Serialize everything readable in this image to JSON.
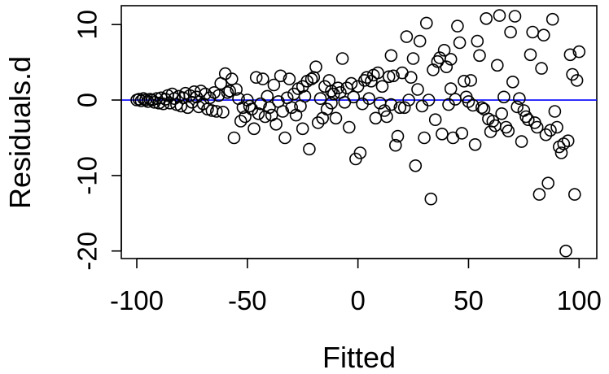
{
  "chart_data": {
    "type": "scatter",
    "title": "",
    "xlabel": "Fitted",
    "ylabel": "Residuals.d",
    "xlim": [
      -107,
      108
    ],
    "ylim": [
      -21,
      12.5
    ],
    "xticks": [
      -100,
      -50,
      0,
      50,
      100
    ],
    "yticks": [
      -20,
      -10,
      0,
      10
    ],
    "reference_line": {
      "y": 0,
      "color": "#0000ff"
    },
    "grid": false,
    "legend": "none",
    "point_color": "#000000",
    "points": [
      [
        -100,
        0.0
      ],
      [
        -99,
        0.1
      ],
      [
        -98,
        -0.1
      ],
      [
        -97,
        0.2
      ],
      [
        -96,
        0.0
      ],
      [
        -95,
        -0.2
      ],
      [
        -94,
        0.1
      ],
      [
        -93,
        0.0
      ],
      [
        -92,
        -0.3
      ],
      [
        -91,
        0.2
      ],
      [
        -90,
        -0.4
      ],
      [
        -89,
        0.3
      ],
      [
        -88,
        -0.5
      ],
      [
        -87,
        0.1
      ],
      [
        -86,
        0.6
      ],
      [
        -85,
        -0.4
      ],
      [
        -84,
        0.8
      ],
      [
        -83,
        0.2
      ],
      [
        -82,
        -0.6
      ],
      [
        -81,
        0.5
      ],
      [
        -80,
        -0.8
      ],
      [
        -79,
        0.3
      ],
      [
        -78,
        0.9
      ],
      [
        -77,
        -1.0
      ],
      [
        -76,
        0.6
      ],
      [
        -75,
        -0.3
      ],
      [
        -74,
        1.1
      ],
      [
        -73,
        0.4
      ],
      [
        -72,
        -0.9
      ],
      [
        -71,
        1.2
      ],
      [
        -70,
        -0.5
      ],
      [
        -69,
        0.8
      ],
      [
        -68,
        -1.2
      ],
      [
        -67,
        0.3
      ],
      [
        -66,
        -1.4
      ],
      [
        -65,
        1.0
      ],
      [
        -64,
        -1.5
      ],
      [
        -63,
        0.6
      ],
      [
        -62,
        2.2
      ],
      [
        -61,
        -1.6
      ],
      [
        -60,
        3.5
      ],
      [
        -59,
        1.0
      ],
      [
        -58,
        1.2
      ],
      [
        -57,
        2.8
      ],
      [
        -56,
        -5.0
      ],
      [
        -55,
        1.4
      ],
      [
        -54,
        0.2
      ],
      [
        -53,
        -2.8
      ],
      [
        -52,
        -1.0
      ],
      [
        -51,
        -2.2
      ],
      [
        -50,
        0.0
      ],
      [
        -49,
        -0.8
      ],
      [
        -48,
        -1.2
      ],
      [
        -47,
        -3.8
      ],
      [
        -46,
        3.0
      ],
      [
        -45,
        -1.8
      ],
      [
        -44,
        -0.5
      ],
      [
        -43,
        2.8
      ],
      [
        -42,
        -2.2
      ],
      [
        -41,
        0.5
      ],
      [
        -40,
        -1.0
      ],
      [
        -39,
        -2.0
      ],
      [
        -38,
        2.0
      ],
      [
        -37,
        -3.2
      ],
      [
        -36,
        -0.2
      ],
      [
        -35,
        3.2
      ],
      [
        -34,
        -1.5
      ],
      [
        -33,
        -5.0
      ],
      [
        -32,
        0.3
      ],
      [
        -31,
        2.8
      ],
      [
        -30,
        -1.0
      ],
      [
        -29,
        0.8
      ],
      [
        -28,
        -2.0
      ],
      [
        -27,
        1.5
      ],
      [
        -26,
        -0.8
      ],
      [
        -25,
        -3.8
      ],
      [
        -24,
        0.5
      ],
      [
        -23,
        2.5
      ],
      [
        -22,
        -6.5
      ],
      [
        -21,
        2.8
      ],
      [
        -20,
        3.0
      ],
      [
        -19,
        4.4
      ],
      [
        -18,
        -3.0
      ],
      [
        -17,
        0.2
      ],
      [
        -16,
        -2.4
      ],
      [
        -15,
        1.8
      ],
      [
        -14,
        -1.2
      ],
      [
        -13,
        2.6
      ],
      [
        -12,
        -0.4
      ],
      [
        -11,
        0.8
      ],
      [
        -10,
        -2.4
      ],
      [
        -9,
        1.6
      ],
      [
        -8,
        1.0
      ],
      [
        -7,
        5.5
      ],
      [
        -6,
        -0.3
      ],
      [
        -5,
        1.6
      ],
      [
        -4,
        -3.6
      ],
      [
        -3,
        2.2
      ],
      [
        -2,
        0.4
      ],
      [
        -1,
        -7.8
      ],
      [
        0,
        1.8
      ],
      [
        1,
        -7.0
      ],
      [
        2,
        -0.5
      ],
      [
        3,
        2.6
      ],
      [
        4,
        3.0
      ],
      [
        5,
        0.2
      ],
      [
        6,
        2.5
      ],
      [
        7,
        3.3
      ],
      [
        8,
        -2.4
      ],
      [
        9,
        3.6
      ],
      [
        10,
        -0.4
      ],
      [
        11,
        1.8
      ],
      [
        12,
        -1.4
      ],
      [
        13,
        -2.2
      ],
      [
        14,
        3.1
      ],
      [
        15,
        -0.6
      ],
      [
        16,
        3.2
      ],
      [
        17,
        -6.0
      ],
      [
        18,
        -4.8
      ],
      [
        19,
        -1.0
      ],
      [
        20,
        3.6
      ],
      [
        21,
        -1.0
      ],
      [
        22,
        8.4
      ],
      [
        23,
        0.0
      ],
      [
        24,
        3.0
      ],
      [
        25,
        5.5
      ],
      [
        26,
        -8.7
      ],
      [
        27,
        1.4
      ],
      [
        28,
        7.8
      ],
      [
        29,
        -0.8
      ],
      [
        30,
        -5.0
      ],
      [
        31,
        10.2
      ],
      [
        32,
        0.0
      ],
      [
        33,
        -13.1
      ],
      [
        34,
        4.0
      ],
      [
        35,
        -2.6
      ],
      [
        36,
        5.1
      ],
      [
        37,
        5.6
      ],
      [
        38,
        -4.5
      ],
      [
        39,
        6.6
      ],
      [
        40,
        4.4
      ],
      [
        41,
        -0.6
      ],
      [
        42,
        5.4
      ],
      [
        43,
        -5.0
      ],
      [
        44,
        0.1
      ],
      [
        45,
        9.8
      ],
      [
        46,
        7.6
      ],
      [
        47,
        -4.4
      ],
      [
        48,
        2.5
      ],
      [
        49,
        0.4
      ],
      [
        50,
        -0.2
      ],
      [
        51,
        2.6
      ],
      [
        52,
        -0.7
      ],
      [
        53,
        -5.9
      ],
      [
        54,
        7.8
      ],
      [
        55,
        5.9
      ],
      [
        56,
        -1.0
      ],
      [
        57,
        -1.2
      ],
      [
        58,
        10.8
      ],
      [
        59,
        -2.5
      ],
      [
        60,
        -4.2
      ],
      [
        61,
        -2.8
      ],
      [
        62,
        -3.4
      ],
      [
        63,
        4.6
      ],
      [
        64,
        11.2
      ],
      [
        65,
        -1.8
      ],
      [
        66,
        0.4
      ],
      [
        67,
        -3.6
      ],
      [
        68,
        -4.1
      ],
      [
        69,
        9.0
      ],
      [
        70,
        2.4
      ],
      [
        71,
        11.1
      ],
      [
        72,
        -0.9
      ],
      [
        73,
        0.2
      ],
      [
        74,
        -5.5
      ],
      [
        75,
        -1.4
      ],
      [
        76,
        -2.2
      ],
      [
        77,
        -2.6
      ],
      [
        78,
        6.0
      ],
      [
        79,
        9.0
      ],
      [
        80,
        -3.0
      ],
      [
        81,
        -3.6
      ],
      [
        82,
        -12.5
      ],
      [
        83,
        4.2
      ],
      [
        84,
        8.6
      ],
      [
        85,
        -4.6
      ],
      [
        86,
        -11.0
      ],
      [
        87,
        -4.0
      ],
      [
        88,
        10.7
      ],
      [
        89,
        -1.5
      ],
      [
        90,
        -3.6
      ],
      [
        91,
        -6.2
      ],
      [
        92,
        -7.0
      ],
      [
        93,
        -5.8
      ],
      [
        94,
        -20.0
      ],
      [
        95,
        -5.4
      ],
      [
        96,
        6.0
      ],
      [
        97,
        3.4
      ],
      [
        98,
        -12.5
      ],
      [
        99,
        2.6
      ],
      [
        100,
        6.4
      ],
      [
        -25,
        1.8
      ],
      [
        -12,
        1.2
      ],
      [
        15,
        5.9
      ],
      [
        42,
        1.5
      ]
    ]
  }
}
